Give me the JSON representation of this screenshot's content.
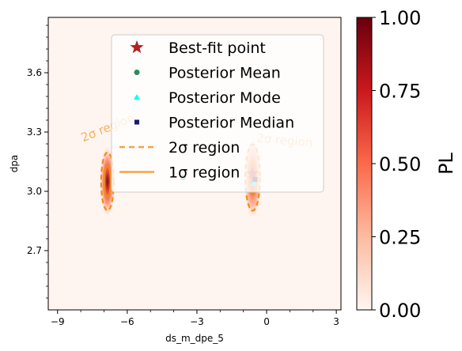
{
  "chart_data": {
    "type": "heatmap",
    "xlabel": "ds_m_dpe_5",
    "ylabel": "dpa",
    "xlim": [
      -9.4,
      3.2
    ],
    "ylim": [
      2.4,
      3.88
    ],
    "xticks": [
      -9,
      -6,
      -3,
      0,
      3
    ],
    "xtick_labels": [
      "−9",
      "−6",
      "−3",
      "0",
      "3"
    ],
    "yticks": [
      2.7,
      3.0,
      3.3,
      3.6
    ],
    "ytick_labels": [
      "2.7",
      "3.0",
      "3.3",
      "3.6"
    ],
    "colorbar": {
      "label": "PL",
      "range": [
        0,
        1
      ],
      "ticks": [
        "0.00",
        "0.25",
        "0.50",
        "0.75",
        "1.00"
      ],
      "colormap": "Reds"
    },
    "legend": {
      "placement": "upper-right",
      "entries": [
        {
          "label": "Best-fit point",
          "marker": "star",
          "color": "#b22222"
        },
        {
          "label": "Posterior Mean",
          "marker": "circle",
          "color": "#2e8b57"
        },
        {
          "label": "Posterior Mode",
          "marker": "triangle",
          "color": "#00ffff"
        },
        {
          "label": "Posterior Median",
          "marker": "square",
          "color": "#191970"
        },
        {
          "label": "2σ region",
          "line": "dashed",
          "color": "#f5a442"
        },
        {
          "label": "1σ region",
          "line": "solid",
          "color": "#f5a442"
        }
      ]
    },
    "modes": [
      {
        "x": -6.85,
        "y": 3.05,
        "sx": 0.13,
        "sy": 0.07,
        "peak": 1.0
      },
      {
        "x": -0.6,
        "y": 3.07,
        "sx": 0.15,
        "sy": 0.08,
        "peak": 0.85
      }
    ],
    "points": {
      "best_fit": {
        "x": -0.6,
        "y": 3.09
      },
      "mean": {
        "x": -3.6,
        "y": 3.07
      },
      "mode": {
        "x": -0.55,
        "y": 3.04
      },
      "median": {
        "x": -0.5,
        "y": 3.06
      }
    },
    "region_labels": [
      {
        "text": "2σ region",
        "x": -7.9,
        "y": 3.25,
        "angle": -22
      },
      {
        "text": "2σ region",
        "x": -0.45,
        "y": 3.25,
        "angle": 5
      }
    ]
  }
}
